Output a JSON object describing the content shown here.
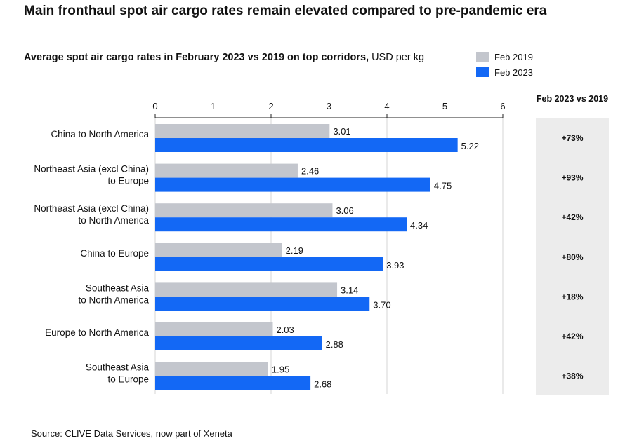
{
  "title_main": "Main fronthaul spot air cargo rates remain elevated compared to pre-pandemic era",
  "subtitle_bold": "Average spot air cargo rates in February 2023 vs 2019 on top corridors,",
  "subtitle_rest": " USD per kg",
  "source": "Source: CLIVE Data Services, now part of Xeneta",
  "colors": {
    "feb2019": "#c3c6cd",
    "feb2023": "#1368f5",
    "pct_bg": "#ececec"
  },
  "chart_data": {
    "type": "bar",
    "orientation": "horizontal",
    "xlim": [
      0,
      6
    ],
    "xticks": [
      "0",
      "1",
      "2",
      "3",
      "4",
      "5",
      "6"
    ],
    "grid": true,
    "legend_position": "top-right",
    "categories": [
      [
        "China to North America"
      ],
      [
        "Northeast Asia (excl China)",
        "to Europe"
      ],
      [
        "Northeast Asia (excl China)",
        "to North America"
      ],
      [
        "China to Europe"
      ],
      [
        "Southeast Asia",
        "to North America"
      ],
      [
        "Europe to North America"
      ],
      [
        "Southeast Asia",
        "to Europe"
      ]
    ],
    "series": [
      {
        "name": "Feb 2019",
        "values": [
          3.01,
          2.46,
          3.06,
          2.19,
          3.14,
          2.03,
          1.95
        ],
        "labels": [
          "3.01",
          "2.46",
          "3.06",
          "2.19",
          "3.14",
          "2.03",
          "1.95"
        ]
      },
      {
        "name": "Feb 2023",
        "values": [
          5.22,
          4.75,
          4.34,
          3.93,
          3.7,
          2.88,
          2.68
        ],
        "labels": [
          "5.22",
          "4.75",
          "4.34",
          "3.93",
          "3.70",
          "2.88",
          "2.68"
        ]
      }
    ],
    "change_header": "Feb 2023 vs 2019",
    "change": [
      "+73%",
      "+93%",
      "+42%",
      "+80%",
      "+18%",
      "+42%",
      "+38%"
    ]
  }
}
